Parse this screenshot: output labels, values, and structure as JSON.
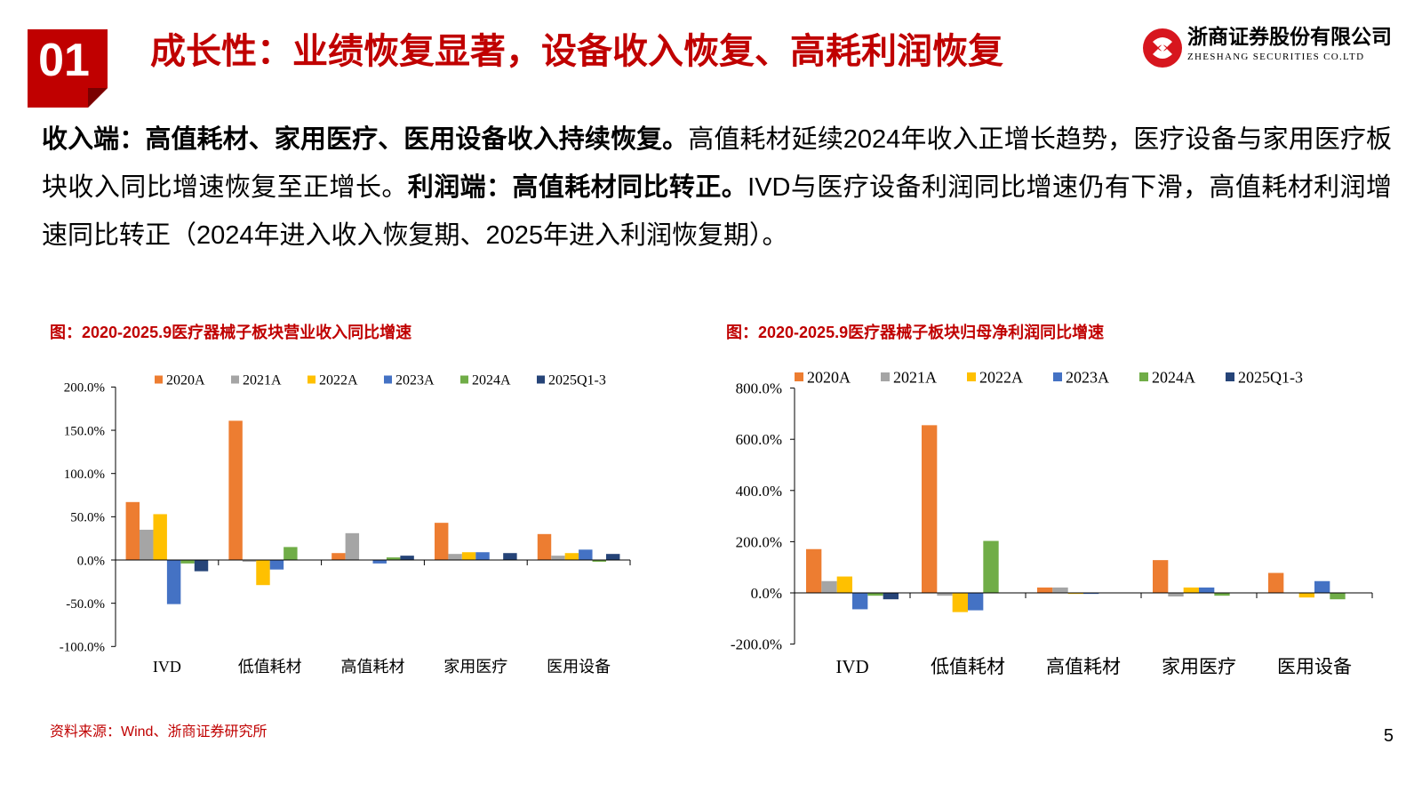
{
  "header": {
    "section_number": "01",
    "title": "成长性：业绩恢复显著，设备收入恢复、高耗利润恢复",
    "logo": {
      "icon": "zheshang-logo-icon",
      "name_cn": "浙商证券股份有限公司",
      "name_en": "ZHESHANG SECURITIES CO.LTD"
    }
  },
  "body": {
    "revenue_heading": "收入端：高值耗材、家用医疗、医用设备收入持续恢复。",
    "revenue_text": "高值耗材延续2024年收入正增长趋势，医疗设备与家用医疗板块收入同比增速恢复至正增长。",
    "profit_heading": "利润端：高值耗材同比转正。",
    "profit_text": "IVD与医疗设备利润同比增速仍有下滑，高值耗材利润增速同比转正（2024年进入收入恢复期、2025年进入利润恢复期）。"
  },
  "chart_data": [
    {
      "type": "bar",
      "title": "图：2020-2025.9医疗器械子板块营业收入同比增速",
      "categories": [
        "IVD",
        "低值耗材",
        "高值耗材",
        "家用医疗",
        "医用设备"
      ],
      "series": [
        {
          "name": "2020A",
          "color": "#ED7D31",
          "values": [
            67,
            161,
            8,
            43,
            30
          ]
        },
        {
          "name": "2021A",
          "color": "#A5A5A5",
          "values": [
            35,
            -2,
            31,
            7,
            5
          ]
        },
        {
          "name": "2022A",
          "color": "#FFC000",
          "values": [
            53,
            -29,
            0,
            9,
            8
          ]
        },
        {
          "name": "2023A",
          "color": "#4472C4",
          "values": [
            -51,
            -11,
            -4,
            9,
            12
          ]
        },
        {
          "name": "2024A",
          "color": "#70AD47",
          "values": [
            -4,
            15,
            3,
            0,
            -2
          ]
        },
        {
          "name": "2025Q1-3",
          "color": "#264478",
          "values": [
            -13,
            null,
            5,
            8,
            7
          ]
        }
      ],
      "value_unit": "%",
      "ylim": [
        -100,
        200
      ],
      "ytick_values": [
        200,
        150,
        100,
        50,
        0,
        -50,
        -100
      ],
      "yticks": [
        "200.0%",
        "150.0%",
        "100.0%",
        "50.0%",
        "0.0%",
        "-50.0%",
        "-100.0%"
      ],
      "xlabel": "",
      "ylabel": "",
      "legend": "top",
      "grid": false
    },
    {
      "type": "bar",
      "title": "图：2020-2025.9医疗器械子板块归母净利润同比增速",
      "categories": [
        "IVD",
        "低值耗材",
        "高值耗材",
        "家用医疗",
        "医用设备"
      ],
      "series": [
        {
          "name": "2020A",
          "color": "#ED7D31",
          "values": [
            171,
            655,
            21,
            128,
            78
          ]
        },
        {
          "name": "2021A",
          "color": "#A5A5A5",
          "values": [
            46,
            -11,
            21,
            -14,
            0
          ]
        },
        {
          "name": "2022A",
          "color": "#FFC000",
          "values": [
            64,
            -75,
            -4,
            21,
            -18
          ]
        },
        {
          "name": "2023A",
          "color": "#4472C4",
          "values": [
            -64,
            -68,
            -4,
            21,
            46
          ]
        },
        {
          "name": "2024A",
          "color": "#70AD47",
          "values": [
            -11,
            203,
            0,
            -11,
            -25
          ]
        },
        {
          "name": "2025Q1-3",
          "color": "#264478",
          "values": [
            -25,
            null,
            null,
            null,
            null
          ]
        }
      ],
      "value_unit": "%",
      "ylim": [
        -200,
        800
      ],
      "ytick_values": [
        800,
        600,
        400,
        200,
        0,
        -200
      ],
      "yticks": [
        "800.0%",
        "600.0%",
        "400.0%",
        "200.0%",
        "0.0%",
        "-200.0%"
      ],
      "xlabel": "",
      "ylabel": "",
      "legend": "top",
      "grid": false
    }
  ],
  "footer": {
    "source": "资料来源：Wind、浙商证券研究所",
    "page_number": "5"
  },
  "theme": {
    "accent": "#C00000",
    "logo_red": "#D7161E"
  }
}
